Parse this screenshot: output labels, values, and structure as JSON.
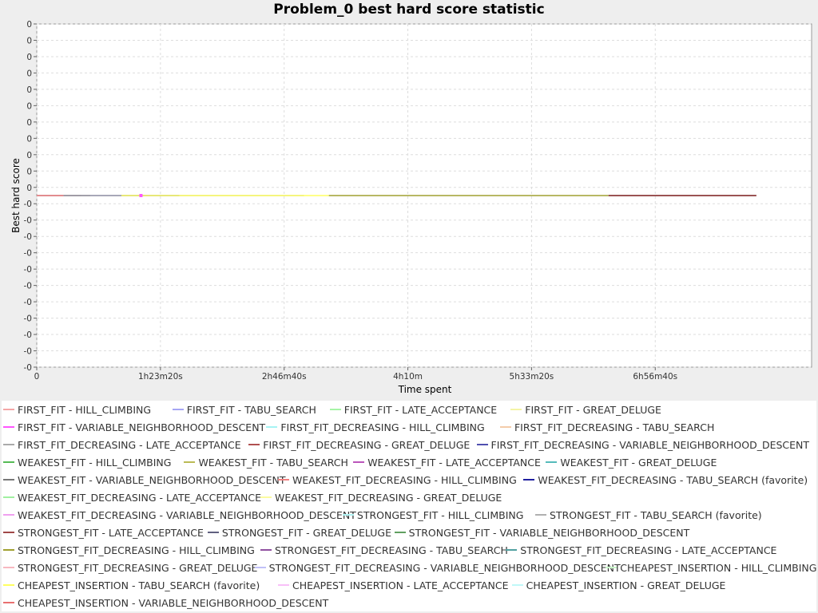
{
  "chart_data": {
    "type": "line",
    "title": "Problem_0 best hard score statistic",
    "xlabel": "Time spent",
    "ylabel": "Best hard score",
    "x_tick_labels": [
      "0",
      "1h23m20s",
      "2h46m40s",
      "4h10m",
      "5h33m20s",
      "6h56m40s"
    ],
    "y_tick_labels": [
      "0",
      "0",
      "0",
      "0",
      "0",
      "0",
      "0",
      "0",
      "0",
      "0",
      "0",
      "-0",
      "-0",
      "-0",
      "-0",
      "-0",
      "-0",
      "-0",
      "-0",
      "-0",
      "-0",
      "-0"
    ],
    "grid": true,
    "legend_position": "bottom",
    "series": [
      {
        "name": "FIRST_FIT - HILL_CLIMBING",
        "color": "#f4a6a6",
        "x_hours": [
          0,
          0.3
        ],
        "y": [
          0,
          0
        ]
      },
      {
        "name": "FIRST_FIT - TABU_SEARCH",
        "color": "#a6a6f4",
        "x_hours": [
          0,
          0.6
        ],
        "y": [
          0,
          0
        ]
      },
      {
        "name": "FIRST_FIT - LATE_ACCEPTANCE",
        "color": "#a6f4a6",
        "x_hours": [
          0,
          0.3
        ],
        "y": [
          0,
          0
        ]
      },
      {
        "name": "FIRST_FIT - GREAT_DELUGE",
        "color": "#f4f4a6",
        "x_hours": [
          0,
          0.3
        ],
        "y": [
          0,
          0
        ]
      },
      {
        "name": "FIRST_FIT - VARIABLE_NEIGHBORHOOD_DESCENT",
        "color": "#ff55ff",
        "x_hours": [
          0,
          0.3
        ],
        "y": [
          0,
          0
        ]
      },
      {
        "name": "FIRST_FIT_DECREASING - HILL_CLIMBING",
        "color": "#a6f4f4",
        "x_hours": [
          0,
          0.3
        ],
        "y": [
          0,
          0
        ]
      },
      {
        "name": "FIRST_FIT_DECREASING - TABU_SEARCH",
        "color": "#f4ccaa",
        "x_hours": [
          0,
          0.6
        ],
        "y": [
          0,
          0
        ]
      },
      {
        "name": "FIRST_FIT_DECREASING - LATE_ACCEPTANCE",
        "color": "#aaaaaa",
        "x_hours": [
          0,
          0.3
        ],
        "y": [
          0,
          0
        ]
      },
      {
        "name": "FIRST_FIT_DECREASING - GREAT_DELUGE",
        "color": "#b05050",
        "x_hours": [
          0,
          0.5
        ],
        "y": [
          0,
          0
        ]
      },
      {
        "name": "FIRST_FIT_DECREASING - VARIABLE_NEIGHBORHOOD_DESCENT",
        "color": "#5050b0",
        "x_hours": [
          0,
          0.3
        ],
        "y": [
          0,
          0
        ]
      },
      {
        "name": "WEAKEST_FIT - HILL_CLIMBING",
        "color": "#55bb55",
        "x_hours": [
          0,
          0.3
        ],
        "y": [
          0,
          0
        ]
      },
      {
        "name": "WEAKEST_FIT - TABU_SEARCH",
        "color": "#bbbb55",
        "x_hours": [
          0,
          0.6
        ],
        "y": [
          0,
          0
        ]
      },
      {
        "name": "WEAKEST_FIT - LATE_ACCEPTANCE",
        "color": "#bb55bb",
        "x_hours": [
          0,
          0.3
        ],
        "y": [
          0,
          0
        ]
      },
      {
        "name": "WEAKEST_FIT - GREAT_DELUGE",
        "color": "#55bbbb",
        "x_hours": [
          0,
          0.3
        ],
        "y": [
          0,
          0
        ]
      },
      {
        "name": "WEAKEST_FIT - VARIABLE_NEIGHBORHOOD_DESCENT",
        "color": "#777777",
        "x_hours": [
          0,
          0.3
        ],
        "y": [
          0,
          0
        ]
      },
      {
        "name": "WEAKEST_FIT_DECREASING - HILL_CLIMBING",
        "color": "#f08080",
        "x_hours": [
          0,
          0.3
        ],
        "y": [
          0,
          0
        ]
      },
      {
        "name": "WEAKEST_FIT_DECREASING - TABU_SEARCH (favorite)",
        "color": "#2020a0",
        "x_hours": [
          0,
          1.6
        ],
        "y": [
          0,
          0
        ]
      },
      {
        "name": "WEAKEST_FIT_DECREASING - LATE_ACCEPTANCE",
        "color": "#a0f0a0",
        "x_hours": [
          0,
          0.3
        ],
        "y": [
          0,
          0
        ]
      },
      {
        "name": "WEAKEST_FIT_DECREASING - GREAT_DELUGE",
        "color": "#fbfba0",
        "x_hours": [
          0,
          0.3
        ],
        "y": [
          0,
          0
        ]
      },
      {
        "name": "WEAKEST_FIT_DECREASING - VARIABLE_NEIGHBORHOOD_DESCENT",
        "color": "#f0a0f0",
        "x_hours": [
          0,
          0.3
        ],
        "y": [
          0,
          0
        ]
      },
      {
        "name": "STRONGEST_FIT - HILL_CLIMBING",
        "color": "#b0f4f4",
        "x_hours": [
          0,
          0.3
        ],
        "y": [
          0,
          0
        ]
      },
      {
        "name": "STRONGEST_FIT - TABU_SEARCH (favorite)",
        "color": "#b0b0b0",
        "x_hours": [
          0,
          3.0
        ],
        "y": [
          0,
          0
        ]
      },
      {
        "name": "STRONGEST_FIT - LATE_ACCEPTANCE",
        "color": "#a04848",
        "x_hours": [
          0,
          0.3
        ],
        "y": [
          0,
          0
        ]
      },
      {
        "name": "STRONGEST_FIT - GREAT_DELUGE",
        "color": "#606080",
        "x_hours": [
          0,
          0.3
        ],
        "y": [
          0,
          0
        ]
      },
      {
        "name": "STRONGEST_FIT - VARIABLE_NEIGHBORHOOD_DESCENT",
        "color": "#60a060",
        "x_hours": [
          0,
          0.3
        ],
        "y": [
          0,
          0
        ]
      },
      {
        "name": "STRONGEST_FIT_DECREASING - HILL_CLIMBING",
        "color": "#a0a030",
        "x_hours": [
          0,
          0.3
        ],
        "y": [
          0,
          0
        ]
      },
      {
        "name": "STRONGEST_FIT_DECREASING - TABU_SEARCH",
        "color": "#9050a0",
        "x_hours": [
          0,
          0.3
        ],
        "y": [
          0,
          0
        ]
      },
      {
        "name": "STRONGEST_FIT_DECREASING - LATE_ACCEPTANCE",
        "color": "#50a0a0",
        "x_hours": [
          0,
          0.3
        ],
        "y": [
          0,
          0
        ]
      },
      {
        "name": "STRONGEST_FIT_DECREASING - GREAT_DELUGE",
        "color": "#f8b8c0",
        "x_hours": [
          0,
          0.3
        ],
        "y": [
          0,
          0
        ]
      },
      {
        "name": "STRONGEST_FIT_DECREASING - VARIABLE_NEIGHBORHOOD_DESCENT",
        "color": "#c0c0f8",
        "x_hours": [
          0,
          0.3
        ],
        "y": [
          0,
          0
        ]
      },
      {
        "name": "CHEAPEST_INSERTION - HILL_CLIMBING",
        "color": "#c8f8c8",
        "x_hours": [
          0,
          0.3
        ],
        "y": [
          0,
          0
        ]
      },
      {
        "name": "CHEAPEST_INSERTION - TABU_SEARCH (favorite)",
        "color": "#ffff60",
        "x_hours": [
          0.95,
          3.28
        ],
        "y": [
          0,
          0
        ]
      },
      {
        "name": "CHEAPEST_INSERTION - LATE_ACCEPTANCE",
        "color": "#f8c0f8",
        "x_hours": [
          0,
          0.3
        ],
        "y": [
          0,
          0
        ]
      },
      {
        "name": "CHEAPEST_INSERTION - GREAT_DELUGE",
        "color": "#c0f8f8",
        "x_hours": [
          0,
          0.3
        ],
        "y": [
          0,
          0
        ]
      },
      {
        "name": "CHEAPEST_INSERTION - VARIABLE_NEIGHBORHOOD_DESCENT",
        "color": "#e87070",
        "x_hours": [
          0,
          0.3
        ],
        "y": [
          0,
          0
        ]
      }
    ],
    "highlight_segments": [
      {
        "color": "#a0a030",
        "x_hours": [
          3.28,
          6.42
        ]
      },
      {
        "color": "#7a1a1a",
        "x_hours": [
          6.42,
          8.08
        ]
      }
    ],
    "x_range_hours": [
      0,
      8.7
    ],
    "y_range": [
      -1,
      1
    ]
  }
}
